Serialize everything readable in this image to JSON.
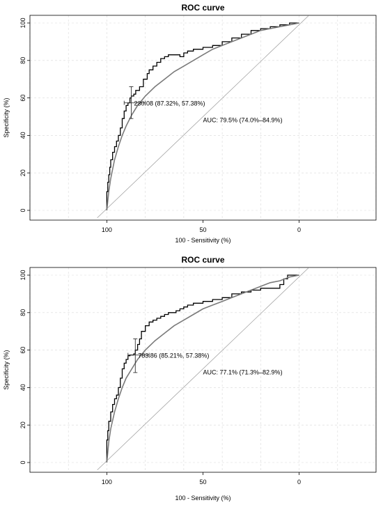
{
  "chart_data": [
    {
      "type": "line",
      "title": "ROC curve",
      "xlabel": "100 - Sensitivity (%)",
      "ylabel": "Specificity (%)",
      "xlim": [
        140,
        -40
      ],
      "ylim": [
        0,
        100
      ],
      "x_reversed": true,
      "grid": true,
      "xticks": [
        100,
        50,
        0
      ],
      "yticks": [
        0,
        20,
        40,
        60,
        80,
        100
      ],
      "series": [
        {
          "role": "empirical",
          "x": [
            100,
            100,
            99.5,
            99,
            98.5,
            98,
            97,
            96,
            95,
            94,
            93,
            92,
            91,
            90,
            89,
            88,
            87.3,
            86,
            85,
            83,
            81,
            79,
            78,
            76,
            74,
            72,
            70,
            68,
            66,
            64,
            62,
            60,
            58,
            55,
            50,
            45,
            40,
            35,
            30,
            25,
            20,
            15,
            10,
            5,
            0
          ],
          "y": [
            0,
            4,
            10,
            15,
            19,
            23,
            27,
            31,
            34,
            37,
            40,
            44,
            49,
            53,
            56,
            57.4,
            60,
            61,
            62,
            64,
            66,
            70,
            73,
            75,
            77,
            79,
            81,
            82,
            83,
            83,
            83,
            82,
            84,
            85,
            86,
            87,
            88,
            90,
            92,
            94,
            96,
            97,
            98,
            99,
            100
          ]
        },
        {
          "role": "smoothed",
          "x": [
            100,
            99,
            98,
            96,
            94,
            92,
            90,
            87,
            84,
            80,
            75,
            70,
            65,
            60,
            55,
            50,
            45,
            40,
            35,
            30,
            25,
            20,
            15,
            10,
            5,
            0
          ],
          "y": [
            0,
            10,
            17,
            27,
            34,
            40,
            45,
            51,
            56,
            61,
            66,
            70,
            74,
            77,
            80,
            83,
            86,
            88,
            90,
            92,
            94,
            96,
            97,
            98,
            99,
            100
          ]
        }
      ],
      "threshold": {
        "x": 87.32,
        "y": 57.38,
        "label": "230.08 (87.32%, 57.38%)",
        "ci_x": [
          80,
          91
        ],
        "ci_y": [
          49,
          66
        ]
      },
      "annotation": "AUC: 79.5% (74.0%–84.9%)"
    },
    {
      "type": "line",
      "title": "ROC curve",
      "xlabel": "100 - Sensitivity (%)",
      "ylabel": "Specificity (%)",
      "xlim": [
        140,
        -40
      ],
      "ylim": [
        0,
        100
      ],
      "x_reversed": true,
      "grid": true,
      "xticks": [
        100,
        50,
        0
      ],
      "yticks": [
        0,
        20,
        40,
        60,
        80,
        100
      ],
      "series": [
        {
          "role": "empirical",
          "x": [
            100,
            100,
            99.5,
            99,
            98,
            97,
            96,
            95,
            94,
            93,
            92,
            91,
            90,
            89,
            88,
            86,
            85.2,
            84,
            83,
            82,
            80,
            78,
            76,
            74,
            72,
            70,
            68,
            66,
            64,
            62,
            60,
            58,
            55,
            50,
            45,
            40,
            35,
            30,
            25,
            20,
            15,
            10,
            8,
            6,
            4,
            0
          ],
          "y": [
            0,
            6,
            12,
            17,
            22,
            27,
            31,
            34,
            36,
            40,
            45,
            50,
            53,
            55,
            57,
            57.4,
            58,
            60,
            63,
            66,
            70,
            73,
            75,
            76,
            77,
            78,
            79,
            80,
            80,
            81,
            82,
            83,
            84,
            85,
            86,
            87,
            88,
            90,
            91,
            92,
            93,
            93,
            95,
            98,
            100,
            100
          ]
        },
        {
          "role": "smoothed",
          "x": [
            100,
            99,
            98,
            96,
            94,
            92,
            90,
            87,
            84,
            80,
            75,
            70,
            65,
            60,
            55,
            50,
            45,
            40,
            35,
            30,
            25,
            20,
            15,
            10,
            5,
            0
          ],
          "y": [
            0,
            11,
            18,
            27,
            34,
            40,
            45,
            50,
            55,
            60,
            65,
            69,
            73,
            76,
            79,
            82,
            84,
            86,
            88,
            90,
            92,
            94,
            96,
            97,
            99,
            100
          ]
        }
      ],
      "threshold": {
        "x": 85.21,
        "y": 57.38,
        "label": "783.86 (85.21%, 57.38%)",
        "ci_x": [
          78,
          89
        ],
        "ci_y": [
          48,
          66
        ]
      },
      "annotation": "AUC: 77.1% (71.3%–82.9%)"
    }
  ]
}
